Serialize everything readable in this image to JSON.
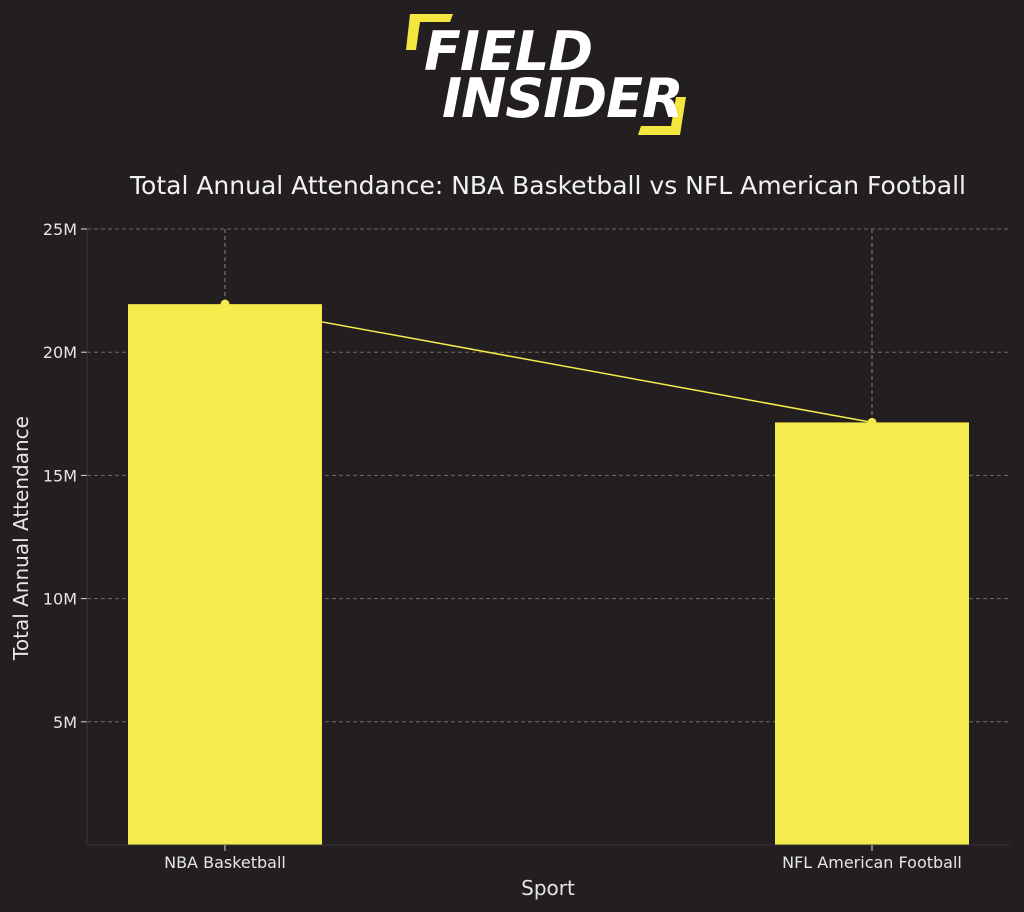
{
  "brand": {
    "line1": "FIELD",
    "line2": "INSIDER",
    "accent_color": "#f5e53f"
  },
  "chart_data": {
    "type": "bar",
    "title": "Total Annual Attendance: NBA Basketball vs NFL American Football",
    "xlabel": "Sport",
    "ylabel": "Total Annual Attendance",
    "categories": [
      "NBA Basketball",
      "NFL American Football"
    ],
    "values": [
      21950000,
      17150000
    ],
    "overlay_line": true,
    "ylim": [
      0,
      25000000
    ],
    "yticks": [
      5000000,
      10000000,
      15000000,
      20000000,
      25000000
    ],
    "ytick_labels": [
      "5M",
      "10M",
      "15M",
      "20M",
      "25M"
    ],
    "grid": true,
    "colors": {
      "bar": "#f6eb4c",
      "line": "#f6eb4c",
      "grid": "#6e6a6b",
      "background": "#231f20"
    }
  }
}
